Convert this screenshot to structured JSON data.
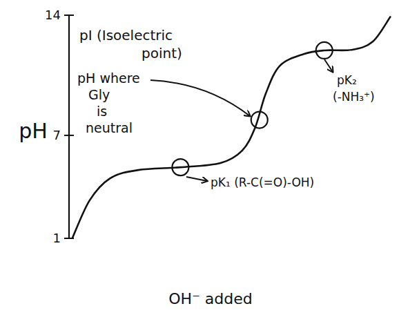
{
  "chart_data": {
    "type": "line",
    "y_label": "pH",
    "x_label": "OH⁻ added",
    "xlim": [
      0,
      3
    ],
    "ylim": [
      1,
      14
    ],
    "yticks": [
      1,
      7,
      14
    ],
    "tick_labels": "y",
    "grid": false,
    "series": [
      {
        "type": "line",
        "color": "#111111",
        "line_style": "solid",
        "x": [
          0.03,
          0.19,
          0.38,
          0.64,
          1.03,
          1.4,
          1.6,
          1.72,
          1.82,
          1.95,
          2.17,
          2.36,
          2.62,
          2.81,
          2.97
        ],
        "values": [
          1.0,
          3.21,
          4.5,
          4.98,
          5.14,
          5.39,
          6.11,
          7.44,
          9.45,
          11.06,
          11.74,
          11.95,
          11.99,
          12.47,
          13.9
        ]
      },
      {
        "type": "scatter",
        "color": "#111111",
        "marker": "circle",
        "x": [
          1.03,
          1.76,
          2.36
        ],
        "values": [
          5.14,
          7.9,
          11.95
        ]
      }
    ],
    "annotations": [
      {
        "text": [
          "pI (Isoelectric",
          "point)"
        ]
      },
      {
        "text": [
          "pH where",
          "Gly",
          "is",
          "neutral"
        ]
      },
      {
        "text": [
          "pK₁ (R-C(=O)-OH)"
        ]
      },
      {
        "text": [
          "pK₂",
          "(-NH₃⁺)"
        ]
      }
    ]
  }
}
